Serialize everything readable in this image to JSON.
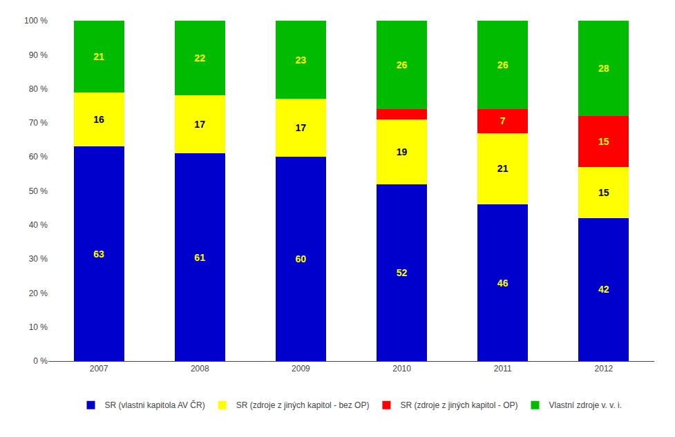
{
  "chart_data": {
    "type": "bar",
    "stacked": true,
    "categories": [
      "2007",
      "2008",
      "2009",
      "2010",
      "2011",
      "2012"
    ],
    "series": [
      {
        "name": "SR (vlastni kapitola AV ČR)",
        "color": "#0000CC",
        "values": [
          63,
          61,
          60,
          52,
          46,
          42
        ]
      },
      {
        "name": "SR (zdroje z jiných kapitol - bez OP)",
        "color": "#FFFF00",
        "values": [
          16,
          17,
          17,
          19,
          21,
          15
        ]
      },
      {
        "name": "SR (zdroje z jiných kapitol - OP)",
        "color": "#FF0000",
        "values": [
          0,
          0,
          0,
          3,
          7,
          15
        ],
        "value_labels": [
          null,
          null,
          null,
          null,
          "7",
          "15"
        ]
      },
      {
        "name": "Vlastní zdroje v. v. i.",
        "color": "#00BB00",
        "values": [
          21,
          22,
          23,
          26,
          26,
          28
        ]
      }
    ],
    "ylim": [
      0,
      100
    ],
    "yticks": [
      {
        "value": 0,
        "label": "0 %"
      },
      {
        "value": 10,
        "label": "10 %"
      },
      {
        "value": 20,
        "label": "20 %"
      },
      {
        "value": 30,
        "label": "30 %"
      },
      {
        "value": 40,
        "label": "40 %"
      },
      {
        "value": 50,
        "label": "50 %"
      },
      {
        "value": 60,
        "label": "60 %"
      },
      {
        "value": 70,
        "label": "70 %"
      },
      {
        "value": 80,
        "label": "80 %"
      },
      {
        "value": 90,
        "label": "90 %"
      },
      {
        "value": 100,
        "label": "100 %"
      }
    ],
    "grid": false,
    "legend": "bottom",
    "data_labels": true
  }
}
